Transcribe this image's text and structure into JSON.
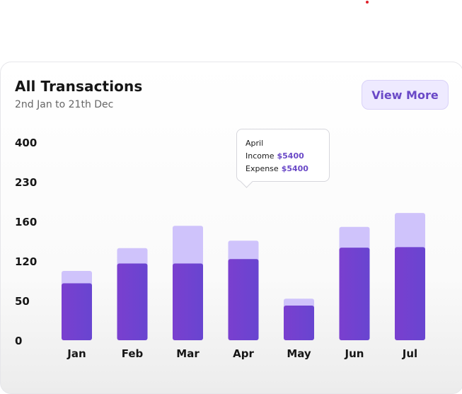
{
  "header": {
    "title": "All Transactions",
    "subtitle": "2nd Jan to 21th Dec",
    "view_more_label": "View More"
  },
  "tooltip": {
    "month": "April",
    "income_label": "Income",
    "income_value": "$5400",
    "expense_label": "Expense",
    "expense_value": "$5400"
  },
  "colors": {
    "income": "#7041cc",
    "expense": "#cfc3fb",
    "accent": "#6a49c7"
  },
  "chart_data": {
    "type": "bar",
    "stacked": true,
    "categories": [
      "Jan",
      "Feb",
      "Mar",
      "Apr",
      "May",
      "Jun",
      "Jul"
    ],
    "y_ticks": [
      "0",
      "50",
      "120",
      "160",
      "230",
      "400"
    ],
    "series": [
      {
        "values": [
          115,
          155,
          155,
          164,
          70,
          187,
          188
        ]
      },
      {
        "values": [
          25,
          31,
          76,
          37,
          14,
          42,
          69
        ]
      }
    ],
    "ylim": [
      0,
      400
    ],
    "grid": false,
    "legend": "none",
    "xlabel": "",
    "ylabel": ""
  }
}
